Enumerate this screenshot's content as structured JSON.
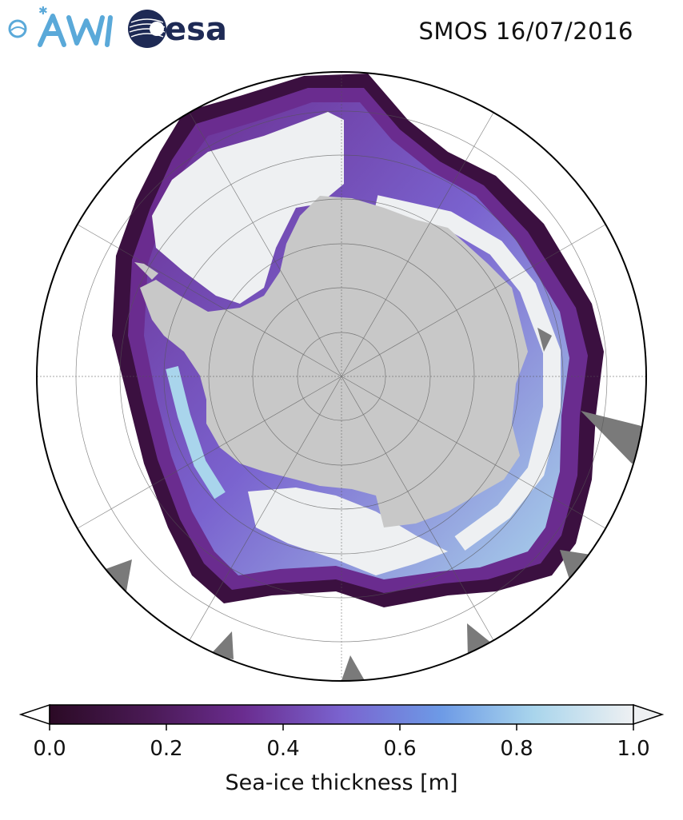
{
  "header": {
    "title": "SMOS 16/07/2016",
    "logos": {
      "awi": {
        "text": "AWI",
        "color": "#5aa9d9"
      },
      "esa": {
        "text": "esa",
        "color": "#1e2a55"
      }
    }
  },
  "map": {
    "projection": "south-polar-stereographic",
    "land_color": "#c8c8c8",
    "nodata_color": "#7a7a7a",
    "open_ocean_color": "#ffffff",
    "gridlines": true
  },
  "colorbar": {
    "label": "Sea-ice thickness [m]",
    "ticks": [
      "0.0",
      "0.2",
      "0.4",
      "0.6",
      "0.8",
      "1.0"
    ],
    "min": 0.0,
    "max": 1.0,
    "extend": "both",
    "colors": [
      "#2b0a25",
      "#4a1a55",
      "#6a2c8f",
      "#7a63cf",
      "#6d9ae6",
      "#a9d5ec",
      "#eef0f2"
    ]
  }
}
